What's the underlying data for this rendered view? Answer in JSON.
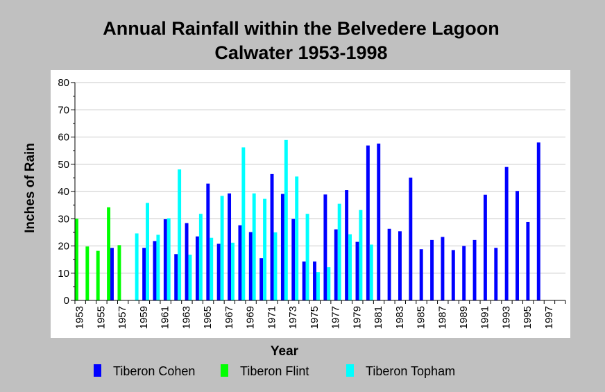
{
  "chart_data": {
    "type": "bar",
    "title": "Annual Rainfall within the Belvedere Lagoon",
    "subtitle": "Calwater 1953-1998",
    "xlabel": "Year",
    "ylabel": "Inches of Rain",
    "ylim": [
      0,
      80
    ],
    "yticks": [
      0,
      10,
      20,
      30,
      40,
      50,
      60,
      70,
      80
    ],
    "x_start": 1953,
    "x_end": 1998,
    "xtick_labels": [
      "1953",
      "1955",
      "1957",
      "1959",
      "1961",
      "1963",
      "1965",
      "1967",
      "1969",
      "1971",
      "1973",
      "1975",
      "1977",
      "1979",
      "1981",
      "1983",
      "1985",
      "1987",
      "1989",
      "1991",
      "1993",
      "1995",
      "1997"
    ],
    "grid": "horizontal",
    "legend_position": "bottom",
    "series": [
      {
        "name": "Tiberon Cohen",
        "color": "#0000ff",
        "offset": 1,
        "points": [
          [
            1956,
            19.3
          ],
          [
            1959,
            19.3
          ],
          [
            1960,
            21.8
          ],
          [
            1961,
            29.8
          ],
          [
            1962,
            17.0
          ],
          [
            1963,
            28.4
          ],
          [
            1964,
            23.5
          ],
          [
            1965,
            42.9
          ],
          [
            1966,
            20.8
          ],
          [
            1967,
            39.3
          ],
          [
            1968,
            27.6
          ],
          [
            1969,
            25.1
          ],
          [
            1970,
            15.5
          ],
          [
            1971,
            46.4
          ],
          [
            1972,
            39.1
          ],
          [
            1973,
            29.9
          ],
          [
            1974,
            14.3
          ],
          [
            1975,
            14.3
          ],
          [
            1976,
            38.9
          ],
          [
            1977,
            26.1
          ],
          [
            1978,
            40.5
          ],
          [
            1979,
            21.5
          ],
          [
            1980,
            56.9
          ],
          [
            1981,
            57.6
          ],
          [
            1982,
            26.3
          ],
          [
            1983,
            25.4
          ],
          [
            1984,
            45.1
          ],
          [
            1985,
            18.8
          ],
          [
            1986,
            22.2
          ],
          [
            1987,
            23.3
          ],
          [
            1988,
            18.5
          ],
          [
            1989,
            20.0
          ],
          [
            1990,
            22.2
          ],
          [
            1991,
            38.8
          ],
          [
            1992,
            19.3
          ],
          [
            1993,
            49.0
          ],
          [
            1994,
            40.2
          ],
          [
            1995,
            28.8
          ],
          [
            1996,
            58.0
          ]
        ]
      },
      {
        "name": "Tiberon Flint",
        "color": "#00ff00",
        "offset": 0,
        "points": [
          [
            1953,
            30.0
          ],
          [
            1954,
            19.8
          ],
          [
            1955,
            18.2
          ],
          [
            1956,
            34.2
          ],
          [
            1957,
            20.3
          ]
        ]
      },
      {
        "name": "Tiberon Topham",
        "color": "#00ffff",
        "offset": 2,
        "points": [
          [
            1958,
            24.6
          ],
          [
            1959,
            35.8
          ],
          [
            1960,
            24.1
          ],
          [
            1961,
            30.2
          ],
          [
            1962,
            48.1
          ],
          [
            1963,
            16.8
          ],
          [
            1964,
            31.8
          ],
          [
            1965,
            23.0
          ],
          [
            1966,
            38.4
          ],
          [
            1967,
            21.2
          ],
          [
            1968,
            56.2
          ],
          [
            1969,
            39.3
          ],
          [
            1970,
            37.3
          ],
          [
            1971,
            25.0
          ],
          [
            1972,
            58.9
          ],
          [
            1973,
            45.5
          ],
          [
            1974,
            31.8
          ],
          [
            1975,
            10.4
          ],
          [
            1976,
            12.2
          ],
          [
            1977,
            35.5
          ],
          [
            1978,
            24.3
          ],
          [
            1979,
            33.2
          ],
          [
            1980,
            20.5
          ]
        ]
      }
    ]
  }
}
